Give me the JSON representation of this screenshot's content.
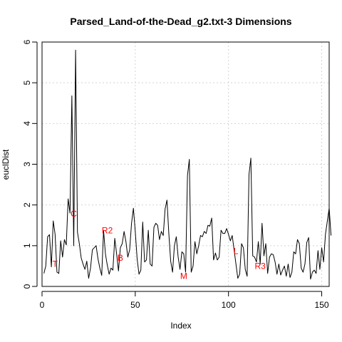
{
  "chart_data": {
    "type": "line",
    "title": "Parsed_Land-of-the-Dead_g2.txt-3 Dimensions",
    "xlabel": "Index",
    "ylabel": "euclDist",
    "xlim": [
      0,
      154
    ],
    "ylim": [
      0,
      6
    ],
    "x_ticks": [
      0,
      50,
      100,
      150
    ],
    "y_ticks": [
      0,
      1,
      2,
      3,
      4,
      5,
      6
    ],
    "grid": true,
    "line_color": "#000000",
    "annotation_color": "#ff0000",
    "x_start": 1,
    "values": [
      0.32,
      0.5,
      1.22,
      1.27,
      0.48,
      1.61,
      1.28,
      0.35,
      0.32,
      1.12,
      0.72,
      1.15,
      1.02,
      2.15,
      1.8,
      4.68,
      1.0,
      5.8,
      1.33,
      1.05,
      0.7,
      0.55,
      0.42,
      0.62,
      0.2,
      0.45,
      0.9,
      0.95,
      1.0,
      0.68,
      0.45,
      0.27,
      1.37,
      0.8,
      0.52,
      0.3,
      0.45,
      0.4,
      1.18,
      0.8,
      0.38,
      0.95,
      1.05,
      1.35,
      1.1,
      0.72,
      0.9,
      1.55,
      1.92,
      1.35,
      0.68,
      0.3,
      0.4,
      1.58,
      0.6,
      0.65,
      1.38,
      0.55,
      0.5,
      1.45,
      1.55,
      1.5,
      1.15,
      1.35,
      1.25,
      1.9,
      2.12,
      1.3,
      0.62,
      0.35,
      1.0,
      1.22,
      0.72,
      0.42,
      0.85,
      0.8,
      0.35,
      2.72,
      3.12,
      0.35,
      0.5,
      1.1,
      0.8,
      1.0,
      1.25,
      1.22,
      1.35,
      1.3,
      1.5,
      1.48,
      1.68,
      0.65,
      0.82,
      0.65,
      0.72,
      1.38,
      1.3,
      1.3,
      1.42,
      1.28,
      1.12,
      1.25,
      0.9,
      0.55,
      0.2,
      0.3,
      1.05,
      0.95,
      0.42,
      0.25,
      2.75,
      3.15,
      0.75,
      0.72,
      0.6,
      1.1,
      0.55,
      1.55,
      0.75,
      1.05,
      0.32,
      0.72,
      0.8,
      0.78,
      0.6,
      0.3,
      0.55,
      0.28,
      0.4,
      0.5,
      0.25,
      0.55,
      0.22,
      0.35,
      0.85,
      0.8,
      1.15,
      1.05,
      0.45,
      0.35,
      0.55,
      1.08,
      1.2,
      0.18,
      0.35,
      0.4,
      0.32,
      0.88,
      0.42,
      0.95,
      0.6,
      1.28,
      1.6,
      1.92,
      1.25
    ],
    "annotations": [
      {
        "label": "T",
        "x": 7,
        "y": 0.55
      },
      {
        "label": "C",
        "x": 17,
        "y": 1.78
      },
      {
        "label": "R2",
        "x": 35,
        "y": 1.37
      },
      {
        "label": "B",
        "x": 42,
        "y": 0.7
      },
      {
        "label": "M",
        "x": 76,
        "y": 0.25
      },
      {
        "label": "L",
        "x": 104,
        "y": 0.87
      },
      {
        "label": "R3",
        "x": 117,
        "y": 0.5
      }
    ]
  }
}
